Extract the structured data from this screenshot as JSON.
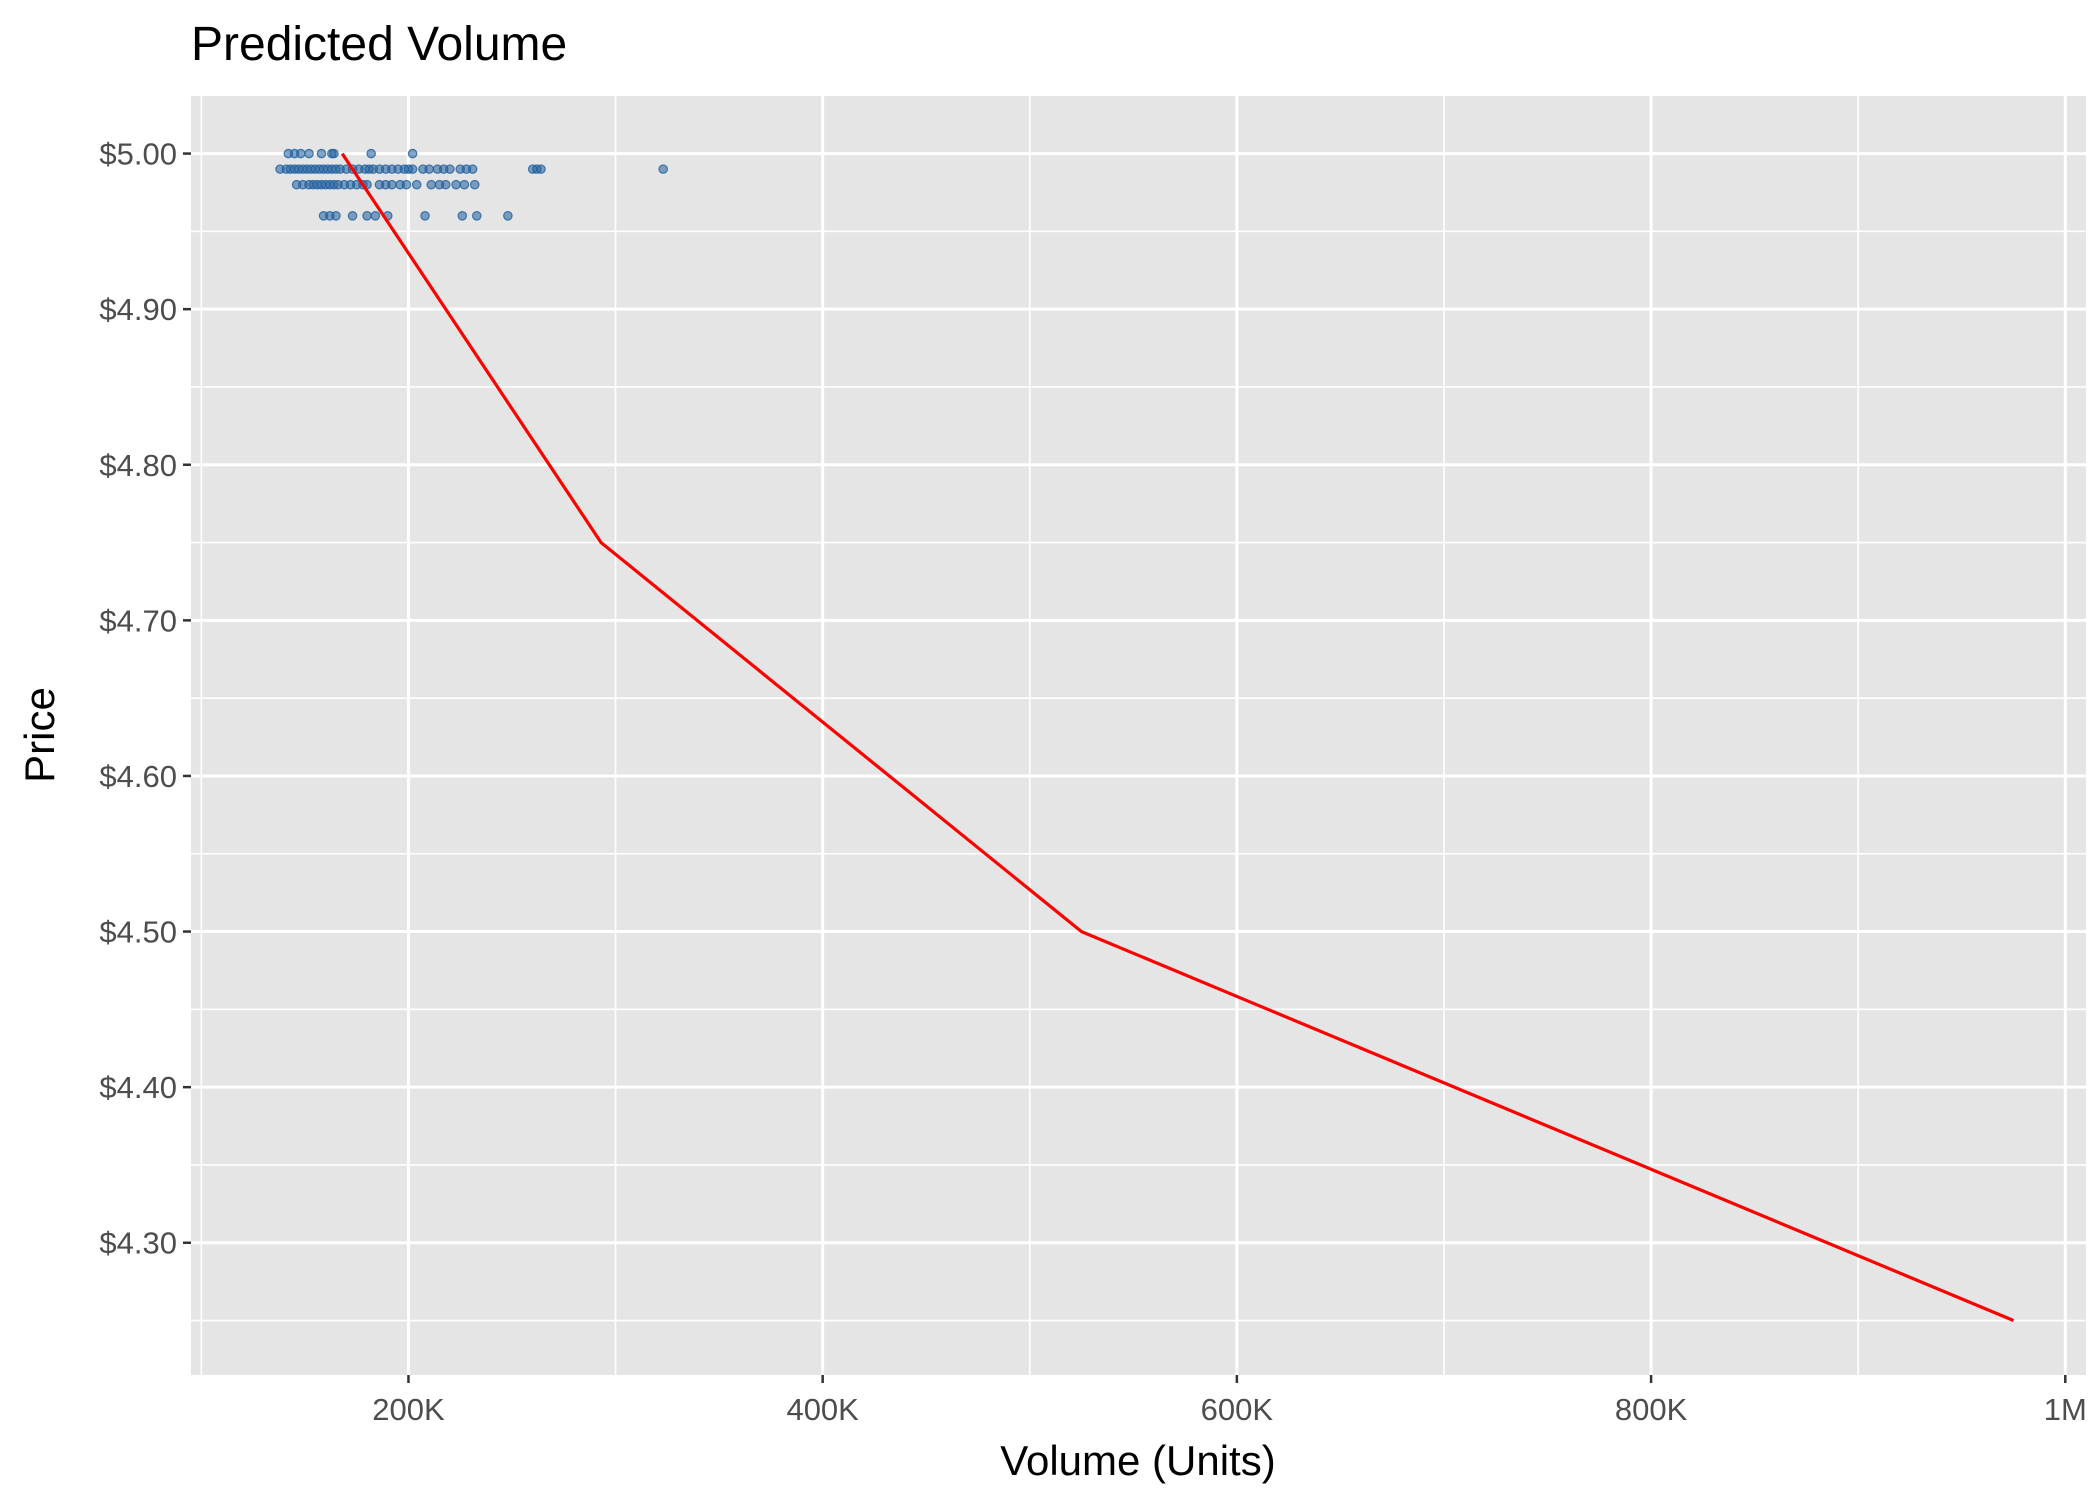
{
  "chart_data": {
    "type": "scatter",
    "title": "Predicted Volume",
    "xlabel": "Volume (Units)",
    "ylabel": "Price",
    "xlim": [
      95000,
      1010000
    ],
    "ylim": [
      4.215,
      5.037
    ],
    "x_ticks": [
      {
        "value": 200000,
        "label": "200K"
      },
      {
        "value": 400000,
        "label": "400K"
      },
      {
        "value": 600000,
        "label": "600K"
      },
      {
        "value": 800000,
        "label": "800K"
      },
      {
        "value": 1000000,
        "label": "1M"
      }
    ],
    "y_ticks": [
      {
        "value": 4.3,
        "label": "$4.30"
      },
      {
        "value": 4.4,
        "label": "$4.40"
      },
      {
        "value": 4.5,
        "label": "$4.50"
      },
      {
        "value": 4.6,
        "label": "$4.60"
      },
      {
        "value": 4.7,
        "label": "$4.70"
      },
      {
        "value": 4.8,
        "label": "$4.80"
      },
      {
        "value": 4.9,
        "label": "$4.90"
      },
      {
        "value": 5.0,
        "label": "$5.00"
      }
    ],
    "grid": true,
    "colors": {
      "panel": "#e5e5e5",
      "grid": "#ffffff",
      "points": "#1f5f9e",
      "line": "#ff0000"
    },
    "series": [
      {
        "type": "scatter",
        "points": [
          {
            "x": 142000,
            "y": 5.0
          },
          {
            "x": 145000,
            "y": 5.0
          },
          {
            "x": 148000,
            "y": 5.0
          },
          {
            "x": 152000,
            "y": 5.0
          },
          {
            "x": 158000,
            "y": 5.0
          },
          {
            "x": 163000,
            "y": 5.0
          },
          {
            "x": 164000,
            "y": 5.0
          },
          {
            "x": 182000,
            "y": 5.0
          },
          {
            "x": 202000,
            "y": 5.0
          },
          {
            "x": 138000,
            "y": 4.99
          },
          {
            "x": 141000,
            "y": 4.99
          },
          {
            "x": 143000,
            "y": 4.99
          },
          {
            "x": 145000,
            "y": 4.99
          },
          {
            "x": 147000,
            "y": 4.99
          },
          {
            "x": 149000,
            "y": 4.99
          },
          {
            "x": 151000,
            "y": 4.99
          },
          {
            "x": 153000,
            "y": 4.99
          },
          {
            "x": 155000,
            "y": 4.99
          },
          {
            "x": 157000,
            "y": 4.99
          },
          {
            "x": 159000,
            "y": 4.99
          },
          {
            "x": 161000,
            "y": 4.99
          },
          {
            "x": 163000,
            "y": 4.99
          },
          {
            "x": 165000,
            "y": 4.99
          },
          {
            "x": 167000,
            "y": 4.99
          },
          {
            "x": 170000,
            "y": 4.99
          },
          {
            "x": 173000,
            "y": 4.99
          },
          {
            "x": 176000,
            "y": 4.99
          },
          {
            "x": 179000,
            "y": 4.99
          },
          {
            "x": 181000,
            "y": 4.99
          },
          {
            "x": 183000,
            "y": 4.99
          },
          {
            "x": 186000,
            "y": 4.99
          },
          {
            "x": 189000,
            "y": 4.99
          },
          {
            "x": 192000,
            "y": 4.99
          },
          {
            "x": 195000,
            "y": 4.99
          },
          {
            "x": 198000,
            "y": 4.99
          },
          {
            "x": 200000,
            "y": 4.99
          },
          {
            "x": 202000,
            "y": 4.99
          },
          {
            "x": 207000,
            "y": 4.99
          },
          {
            "x": 210000,
            "y": 4.99
          },
          {
            "x": 214000,
            "y": 4.99
          },
          {
            "x": 217000,
            "y": 4.99
          },
          {
            "x": 220000,
            "y": 4.99
          },
          {
            "x": 225000,
            "y": 4.99
          },
          {
            "x": 228000,
            "y": 4.99
          },
          {
            "x": 231000,
            "y": 4.99
          },
          {
            "x": 260000,
            "y": 4.99
          },
          {
            "x": 262000,
            "y": 4.99
          },
          {
            "x": 264000,
            "y": 4.99
          },
          {
            "x": 323000,
            "y": 4.99
          },
          {
            "x": 146000,
            "y": 4.98
          },
          {
            "x": 149000,
            "y": 4.98
          },
          {
            "x": 152000,
            "y": 4.98
          },
          {
            "x": 154000,
            "y": 4.98
          },
          {
            "x": 156000,
            "y": 4.98
          },
          {
            "x": 158000,
            "y": 4.98
          },
          {
            "x": 160000,
            "y": 4.98
          },
          {
            "x": 162000,
            "y": 4.98
          },
          {
            "x": 164000,
            "y": 4.98
          },
          {
            "x": 166000,
            "y": 4.98
          },
          {
            "x": 169000,
            "y": 4.98
          },
          {
            "x": 172000,
            "y": 4.98
          },
          {
            "x": 175000,
            "y": 4.98
          },
          {
            "x": 178000,
            "y": 4.98
          },
          {
            "x": 180000,
            "y": 4.98
          },
          {
            "x": 186000,
            "y": 4.98
          },
          {
            "x": 189000,
            "y": 4.98
          },
          {
            "x": 192000,
            "y": 4.98
          },
          {
            "x": 196000,
            "y": 4.98
          },
          {
            "x": 199000,
            "y": 4.98
          },
          {
            "x": 204000,
            "y": 4.98
          },
          {
            "x": 211000,
            "y": 4.98
          },
          {
            "x": 215000,
            "y": 4.98
          },
          {
            "x": 218000,
            "y": 4.98
          },
          {
            "x": 223000,
            "y": 4.98
          },
          {
            "x": 227000,
            "y": 4.98
          },
          {
            "x": 232000,
            "y": 4.98
          },
          {
            "x": 159000,
            "y": 4.96
          },
          {
            "x": 162000,
            "y": 4.96
          },
          {
            "x": 165000,
            "y": 4.96
          },
          {
            "x": 173000,
            "y": 4.96
          },
          {
            "x": 180000,
            "y": 4.96
          },
          {
            "x": 184000,
            "y": 4.96
          },
          {
            "x": 190000,
            "y": 4.96
          },
          {
            "x": 208000,
            "y": 4.96
          },
          {
            "x": 226000,
            "y": 4.96
          },
          {
            "x": 233000,
            "y": 4.96
          },
          {
            "x": 248000,
            "y": 4.96
          }
        ]
      },
      {
        "type": "line",
        "points": [
          {
            "x": 168000,
            "y": 5.0
          },
          {
            "x": 293000,
            "y": 4.75
          },
          {
            "x": 525000,
            "y": 4.5
          },
          {
            "x": 975000,
            "y": 4.25
          }
        ]
      }
    ]
  }
}
